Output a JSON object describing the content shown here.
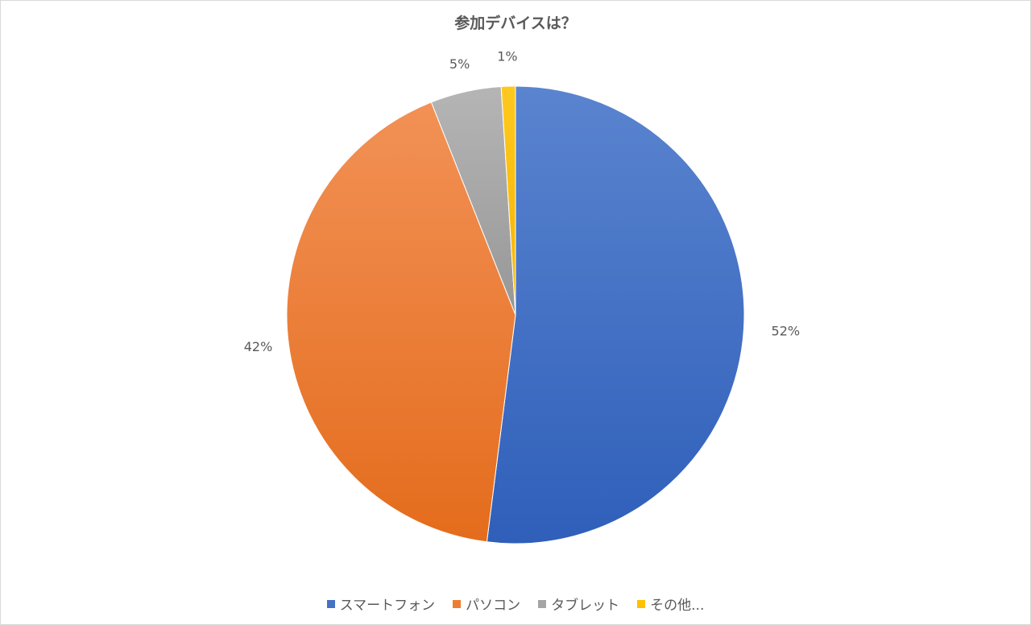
{
  "chart_data": {
    "type": "pie",
    "title": "参加デバイスは？",
    "categories": [
      "スマートフォン",
      "パソコン",
      "タブレット",
      "その他..."
    ],
    "values": [
      52,
      42,
      5,
      1
    ],
    "data_labels": [
      "52%",
      "42%",
      "5%",
      "1%"
    ],
    "colors": [
      "#4472c4",
      "#ed7d31",
      "#a5a5a5",
      "#ffc000"
    ],
    "legend_position": "bottom"
  }
}
